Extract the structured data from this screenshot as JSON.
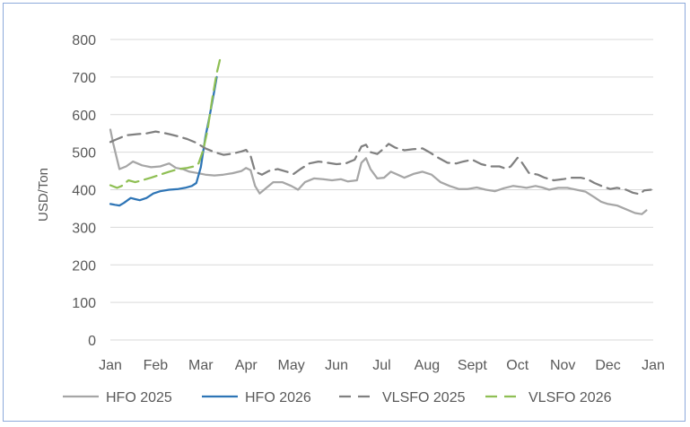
{
  "chart_data": {
    "type": "line",
    "title": "",
    "xlabel": "",
    "ylabel": "USD/Ton",
    "ylim": [
      0,
      800
    ],
    "yticks": [
      "0",
      "100",
      "200",
      "300",
      "400",
      "500",
      "600",
      "700",
      "800"
    ],
    "xlim": [
      0,
      12
    ],
    "xticks": [
      "Jan",
      "Feb",
      "Mar",
      "Apr",
      "May",
      "Jun",
      "Jul",
      "Aug",
      "Sept",
      "Oct",
      "Nov",
      "Dec",
      "Jan"
    ],
    "grid": "horizontal",
    "legend": "bottom",
    "series": [
      {
        "name": "HFO 2025",
        "color": "#a6a6a6",
        "style": "solid",
        "points": [
          [
            0,
            560
          ],
          [
            0.06,
            525
          ],
          [
            0.2,
            455
          ],
          [
            0.35,
            462
          ],
          [
            0.5,
            475
          ],
          [
            0.7,
            465
          ],
          [
            0.9,
            460
          ],
          [
            1.1,
            462
          ],
          [
            1.3,
            470
          ],
          [
            1.45,
            458
          ],
          [
            1.6,
            455
          ],
          [
            1.75,
            448
          ],
          [
            1.9,
            445
          ],
          [
            2.1,
            440
          ],
          [
            2.3,
            438
          ],
          [
            2.5,
            440
          ],
          [
            2.7,
            444
          ],
          [
            2.9,
            450
          ],
          [
            3.0,
            458
          ],
          [
            3.1,
            452
          ],
          [
            3.2,
            410
          ],
          [
            3.3,
            390
          ],
          [
            3.45,
            405
          ],
          [
            3.6,
            420
          ],
          [
            3.8,
            420
          ],
          [
            4.0,
            410
          ],
          [
            4.15,
            400
          ],
          [
            4.3,
            420
          ],
          [
            4.5,
            430
          ],
          [
            4.7,
            428
          ],
          [
            4.9,
            425
          ],
          [
            5.1,
            428
          ],
          [
            5.25,
            422
          ],
          [
            5.45,
            425
          ],
          [
            5.55,
            472
          ],
          [
            5.65,
            484
          ],
          [
            5.75,
            455
          ],
          [
            5.9,
            430
          ],
          [
            6.05,
            432
          ],
          [
            6.2,
            448
          ],
          [
            6.35,
            440
          ],
          [
            6.5,
            432
          ],
          [
            6.7,
            442
          ],
          [
            6.9,
            448
          ],
          [
            7.1,
            440
          ],
          [
            7.3,
            420
          ],
          [
            7.5,
            410
          ],
          [
            7.7,
            402
          ],
          [
            7.9,
            402
          ],
          [
            8.1,
            406
          ],
          [
            8.3,
            400
          ],
          [
            8.5,
            396
          ],
          [
            8.7,
            404
          ],
          [
            8.9,
            410
          ],
          [
            9.05,
            408
          ],
          [
            9.2,
            405
          ],
          [
            9.4,
            410
          ],
          [
            9.55,
            406
          ],
          [
            9.7,
            400
          ],
          [
            9.9,
            405
          ],
          [
            10.1,
            405
          ],
          [
            10.3,
            400
          ],
          [
            10.5,
            395
          ],
          [
            10.7,
            380
          ],
          [
            10.85,
            368
          ],
          [
            11.0,
            362
          ],
          [
            11.2,
            358
          ],
          [
            11.4,
            348
          ],
          [
            11.6,
            338
          ],
          [
            11.75,
            335
          ],
          [
            11.85,
            345
          ]
        ]
      },
      {
        "name": "HFO 2026",
        "color": "#2e75b6",
        "style": "solid",
        "points": [
          [
            0,
            362
          ],
          [
            0.1,
            360
          ],
          [
            0.2,
            358
          ],
          [
            0.3,
            365
          ],
          [
            0.45,
            378
          ],
          [
            0.55,
            375
          ],
          [
            0.65,
            372
          ],
          [
            0.8,
            378
          ],
          [
            0.95,
            390
          ],
          [
            1.1,
            396
          ],
          [
            1.3,
            400
          ],
          [
            1.5,
            402
          ],
          [
            1.65,
            405
          ],
          [
            1.8,
            410
          ],
          [
            1.9,
            418
          ],
          [
            2.0,
            460
          ],
          [
            2.1,
            540
          ],
          [
            2.2,
            600
          ],
          [
            2.3,
            665
          ],
          [
            2.35,
            700
          ]
        ]
      },
      {
        "name": "VLSFO 2025",
        "color": "#808080",
        "style": "dash",
        "points": [
          [
            0,
            527
          ],
          [
            0.15,
            535
          ],
          [
            0.35,
            545
          ],
          [
            0.6,
            548
          ],
          [
            0.8,
            550
          ],
          [
            1.0,
            555
          ],
          [
            1.15,
            552
          ],
          [
            1.3,
            548
          ],
          [
            1.5,
            542
          ],
          [
            1.7,
            535
          ],
          [
            1.9,
            525
          ],
          [
            2.1,
            510
          ],
          [
            2.3,
            500
          ],
          [
            2.5,
            493
          ],
          [
            2.7,
            496
          ],
          [
            2.9,
            502
          ],
          [
            3.0,
            506
          ],
          [
            3.1,
            490
          ],
          [
            3.2,
            448
          ],
          [
            3.35,
            440
          ],
          [
            3.5,
            450
          ],
          [
            3.7,
            455
          ],
          [
            3.9,
            448
          ],
          [
            4.05,
            442
          ],
          [
            4.2,
            455
          ],
          [
            4.4,
            470
          ],
          [
            4.6,
            475
          ],
          [
            4.8,
            472
          ],
          [
            5.0,
            468
          ],
          [
            5.2,
            470
          ],
          [
            5.4,
            480
          ],
          [
            5.55,
            515
          ],
          [
            5.65,
            520
          ],
          [
            5.75,
            500
          ],
          [
            5.9,
            495
          ],
          [
            6.05,
            510
          ],
          [
            6.15,
            522
          ],
          [
            6.3,
            512
          ],
          [
            6.5,
            505
          ],
          [
            6.7,
            508
          ],
          [
            6.9,
            510
          ],
          [
            7.05,
            500
          ],
          [
            7.25,
            485
          ],
          [
            7.45,
            472
          ],
          [
            7.65,
            470
          ],
          [
            7.8,
            475
          ],
          [
            8.0,
            480
          ],
          [
            8.2,
            468
          ],
          [
            8.4,
            462
          ],
          [
            8.6,
            462
          ],
          [
            8.75,
            456
          ],
          [
            8.85,
            462
          ],
          [
            9.0,
            485
          ],
          [
            9.1,
            472
          ],
          [
            9.25,
            445
          ],
          [
            9.45,
            440
          ],
          [
            9.6,
            432
          ],
          [
            9.8,
            425
          ],
          [
            10.0,
            428
          ],
          [
            10.2,
            432
          ],
          [
            10.4,
            432
          ],
          [
            10.55,
            428
          ],
          [
            10.7,
            418
          ],
          [
            10.9,
            408
          ],
          [
            11.05,
            402
          ],
          [
            11.2,
            405
          ],
          [
            11.4,
            400
          ],
          [
            11.55,
            392
          ],
          [
            11.7,
            388
          ],
          [
            11.8,
            398
          ],
          [
            11.95,
            400
          ]
        ]
      },
      {
        "name": "VLSFO 2026",
        "color": "#8fbf54",
        "style": "dash",
        "points": [
          [
            0,
            412
          ],
          [
            0.15,
            405
          ],
          [
            0.25,
            410
          ],
          [
            0.4,
            425
          ],
          [
            0.55,
            420
          ],
          [
            0.7,
            425
          ],
          [
            0.9,
            432
          ],
          [
            1.1,
            440
          ],
          [
            1.3,
            448
          ],
          [
            1.5,
            455
          ],
          [
            1.7,
            458
          ],
          [
            1.85,
            462
          ],
          [
            1.95,
            470
          ],
          [
            2.05,
            505
          ],
          [
            2.15,
            560
          ],
          [
            2.25,
            640
          ],
          [
            2.35,
            710
          ],
          [
            2.42,
            745
          ]
        ]
      }
    ]
  }
}
